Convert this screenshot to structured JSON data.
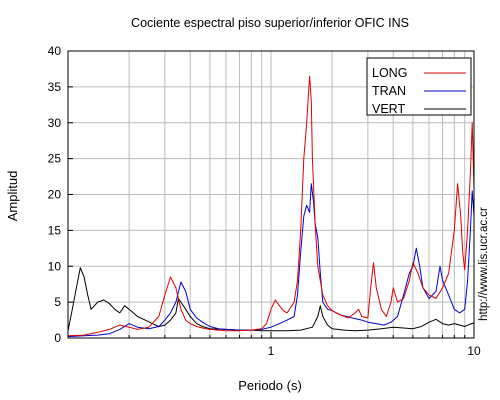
{
  "chart_data": {
    "type": "line",
    "title": "Cociente espectral piso superior/inferior  OFIC INS",
    "xlabel": "Periodo (s)",
    "ylabel": "Amplitud",
    "x_scale": "log",
    "xlim": [
      0.1,
      10
    ],
    "ylim": [
      0,
      40
    ],
    "x_tick_labels": [
      "1",
      "10"
    ],
    "y_ticks": [
      0,
      5,
      10,
      15,
      20,
      25,
      30,
      35,
      40
    ],
    "grid": true,
    "legend_position": "top-right",
    "side_annotation": "http://www.lis.ucr.ac.cr",
    "series": [
      {
        "name": "LONG",
        "color": "#dd0000",
        "points": [
          [
            0.1,
            0.3
          ],
          [
            0.12,
            0.4
          ],
          [
            0.14,
            0.8
          ],
          [
            0.16,
            1.2
          ],
          [
            0.18,
            1.8
          ],
          [
            0.2,
            1.5
          ],
          [
            0.22,
            1.2
          ],
          [
            0.25,
            1.5
          ],
          [
            0.28,
            3
          ],
          [
            0.3,
            6
          ],
          [
            0.32,
            8.5
          ],
          [
            0.34,
            7
          ],
          [
            0.36,
            4
          ],
          [
            0.38,
            2.5
          ],
          [
            0.4,
            2
          ],
          [
            0.43,
            1.6
          ],
          [
            0.46,
            1.4
          ],
          [
            0.5,
            1.2
          ],
          [
            0.55,
            1.1
          ],
          [
            0.6,
            1.0
          ],
          [
            0.7,
            1.0
          ],
          [
            0.8,
            1.1
          ],
          [
            0.9,
            1.3
          ],
          [
            0.95,
            2
          ],
          [
            1.0,
            4
          ],
          [
            1.05,
            5.3
          ],
          [
            1.1,
            4.5
          ],
          [
            1.15,
            3.8
          ],
          [
            1.2,
            3.5
          ],
          [
            1.3,
            5
          ],
          [
            1.35,
            8
          ],
          [
            1.4,
            15
          ],
          [
            1.45,
            25
          ],
          [
            1.5,
            30
          ],
          [
            1.55,
            36.5
          ],
          [
            1.58,
            33
          ],
          [
            1.6,
            25
          ],
          [
            1.65,
            16
          ],
          [
            1.7,
            10
          ],
          [
            1.8,
            6
          ],
          [
            1.9,
            4.5
          ],
          [
            2.0,
            3.8
          ],
          [
            2.2,
            3.2
          ],
          [
            2.4,
            2.8
          ],
          [
            2.6,
            3.5
          ],
          [
            2.7,
            4
          ],
          [
            2.8,
            3
          ],
          [
            3.0,
            2.8
          ],
          [
            3.1,
            7
          ],
          [
            3.2,
            10.5
          ],
          [
            3.3,
            7
          ],
          [
            3.5,
            4
          ],
          [
            3.7,
            3
          ],
          [
            3.9,
            5
          ],
          [
            4.0,
            7
          ],
          [
            4.2,
            5
          ],
          [
            4.5,
            5.5
          ],
          [
            4.8,
            8
          ],
          [
            5.0,
            10.5
          ],
          [
            5.3,
            9
          ],
          [
            5.6,
            7
          ],
          [
            6.0,
            6
          ],
          [
            6.5,
            5.5
          ],
          [
            7.0,
            7
          ],
          [
            7.5,
            9
          ],
          [
            8.0,
            15
          ],
          [
            8.3,
            21.5
          ],
          [
            8.6,
            17
          ],
          [
            8.8,
            12
          ],
          [
            9.0,
            9.5
          ],
          [
            9.3,
            15
          ],
          [
            9.6,
            23
          ],
          [
            9.8,
            30
          ],
          [
            10.0,
            21
          ]
        ]
      },
      {
        "name": "TRAN",
        "color": "#0000cc",
        "points": [
          [
            0.1,
            0.2
          ],
          [
            0.12,
            0.3
          ],
          [
            0.14,
            0.4
          ],
          [
            0.16,
            0.6
          ],
          [
            0.18,
            1.2
          ],
          [
            0.2,
            2.0
          ],
          [
            0.22,
            1.5
          ],
          [
            0.25,
            1.3
          ],
          [
            0.28,
            1.6
          ],
          [
            0.3,
            2.5
          ],
          [
            0.32,
            3.5
          ],
          [
            0.34,
            5
          ],
          [
            0.36,
            7.8
          ],
          [
            0.38,
            6.5
          ],
          [
            0.4,
            4
          ],
          [
            0.43,
            2.8
          ],
          [
            0.46,
            2.2
          ],
          [
            0.5,
            1.6
          ],
          [
            0.55,
            1.3
          ],
          [
            0.6,
            1.2
          ],
          [
            0.7,
            1.1
          ],
          [
            0.8,
            1.1
          ],
          [
            0.9,
            1.2
          ],
          [
            1.0,
            1.5
          ],
          [
            1.1,
            2
          ],
          [
            1.2,
            2.5
          ],
          [
            1.3,
            3
          ],
          [
            1.35,
            6
          ],
          [
            1.4,
            12
          ],
          [
            1.45,
            17
          ],
          [
            1.5,
            18.5
          ],
          [
            1.55,
            17.5
          ],
          [
            1.58,
            21.5
          ],
          [
            1.62,
            19
          ],
          [
            1.65,
            16
          ],
          [
            1.7,
            14
          ],
          [
            1.75,
            9
          ],
          [
            1.8,
            5
          ],
          [
            1.9,
            4
          ],
          [
            2.0,
            3.8
          ],
          [
            2.2,
            3.2
          ],
          [
            2.5,
            2.8
          ],
          [
            2.8,
            2.5
          ],
          [
            3.0,
            2.2
          ],
          [
            3.3,
            2.0
          ],
          [
            3.6,
            1.8
          ],
          [
            3.9,
            2.2
          ],
          [
            4.2,
            3
          ],
          [
            4.5,
            6
          ],
          [
            4.8,
            9
          ],
          [
            5.0,
            10
          ],
          [
            5.2,
            12.5
          ],
          [
            5.4,
            10
          ],
          [
            5.6,
            7
          ],
          [
            6.0,
            5.5
          ],
          [
            6.5,
            6.5
          ],
          [
            6.8,
            10
          ],
          [
            7.0,
            8
          ],
          [
            7.5,
            6
          ],
          [
            8.0,
            4
          ],
          [
            8.5,
            3.5
          ],
          [
            9.0,
            4
          ],
          [
            9.3,
            8
          ],
          [
            9.6,
            15
          ],
          [
            9.8,
            20.5
          ],
          [
            10.0,
            17
          ]
        ]
      },
      {
        "name": "VERT",
        "color": "#000000",
        "points": [
          [
            0.1,
            1
          ],
          [
            0.105,
            4
          ],
          [
            0.11,
            7
          ],
          [
            0.115,
            9.8
          ],
          [
            0.12,
            8.5
          ],
          [
            0.125,
            6
          ],
          [
            0.13,
            4
          ],
          [
            0.14,
            5
          ],
          [
            0.15,
            5.3
          ],
          [
            0.16,
            4.8
          ],
          [
            0.17,
            4
          ],
          [
            0.18,
            3.5
          ],
          [
            0.19,
            4.5
          ],
          [
            0.2,
            4
          ],
          [
            0.21,
            3.5
          ],
          [
            0.22,
            3
          ],
          [
            0.24,
            2.5
          ],
          [
            0.26,
            2.0
          ],
          [
            0.28,
            1.6
          ],
          [
            0.3,
            1.8
          ],
          [
            0.32,
            2.5
          ],
          [
            0.34,
            3.5
          ],
          [
            0.35,
            5.5
          ],
          [
            0.36,
            5
          ],
          [
            0.38,
            4
          ],
          [
            0.4,
            3
          ],
          [
            0.43,
            2
          ],
          [
            0.46,
            1.6
          ],
          [
            0.5,
            1.3
          ],
          [
            0.6,
            1.2
          ],
          [
            0.7,
            1.1
          ],
          [
            0.8,
            1.1
          ],
          [
            0.9,
            1.0
          ],
          [
            1.0,
            1.0
          ],
          [
            1.2,
            1.0
          ],
          [
            1.4,
            1.1
          ],
          [
            1.6,
            1.5
          ],
          [
            1.7,
            3
          ],
          [
            1.75,
            4.5
          ],
          [
            1.8,
            3
          ],
          [
            1.9,
            1.8
          ],
          [
            2.0,
            1.3
          ],
          [
            2.3,
            1.1
          ],
          [
            2.6,
            1.0
          ],
          [
            3.0,
            1.1
          ],
          [
            3.5,
            1.3
          ],
          [
            4.0,
            1.5
          ],
          [
            4.5,
            1.4
          ],
          [
            5.0,
            1.3
          ],
          [
            5.5,
            1.6
          ],
          [
            6.0,
            2.2
          ],
          [
            6.5,
            2.6
          ],
          [
            7.0,
            2.0
          ],
          [
            7.5,
            1.8
          ],
          [
            8.0,
            2.0
          ],
          [
            8.5,
            1.8
          ],
          [
            9.0,
            1.6
          ],
          [
            9.5,
            1.9
          ],
          [
            10.0,
            2.1
          ]
        ]
      }
    ]
  }
}
